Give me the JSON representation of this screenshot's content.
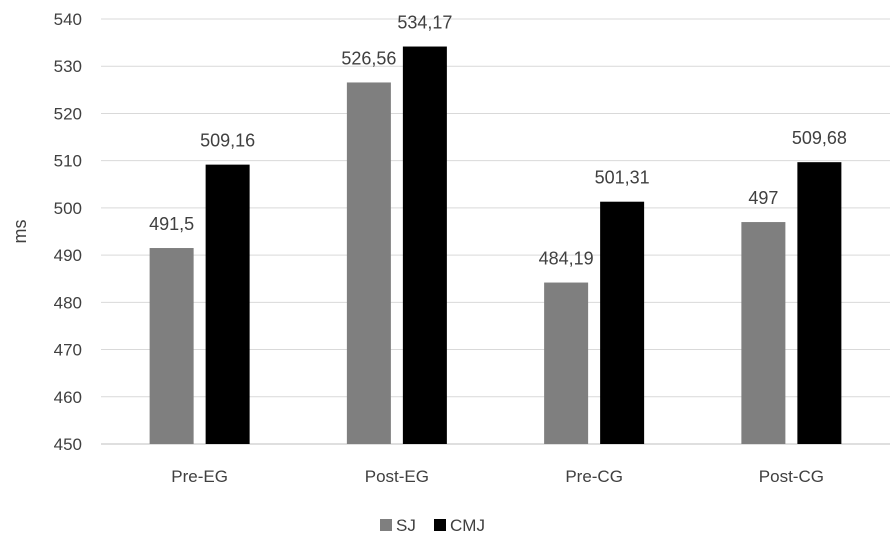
{
  "chart_data": {
    "type": "bar",
    "title": "",
    "xlabel": "",
    "ylabel": "ms",
    "ylim": [
      450,
      540
    ],
    "ytick_step": 10,
    "grid": true,
    "legend_position": "bottom",
    "categories": [
      "Pre-EG",
      "Post-EG",
      "Pre-CG",
      "Post-CG"
    ],
    "series": [
      {
        "name": "SJ",
        "color": "#7f7f7f",
        "values": [
          491.5,
          526.56,
          484.19,
          497
        ],
        "labels": [
          "491,5",
          "526,56",
          "484,19",
          "497"
        ]
      },
      {
        "name": "CMJ",
        "color": "#000000",
        "values": [
          509.16,
          534.17,
          501.31,
          509.68
        ],
        "labels": [
          "509,16",
          "534,17",
          "501,31",
          "509,68"
        ]
      }
    ]
  }
}
